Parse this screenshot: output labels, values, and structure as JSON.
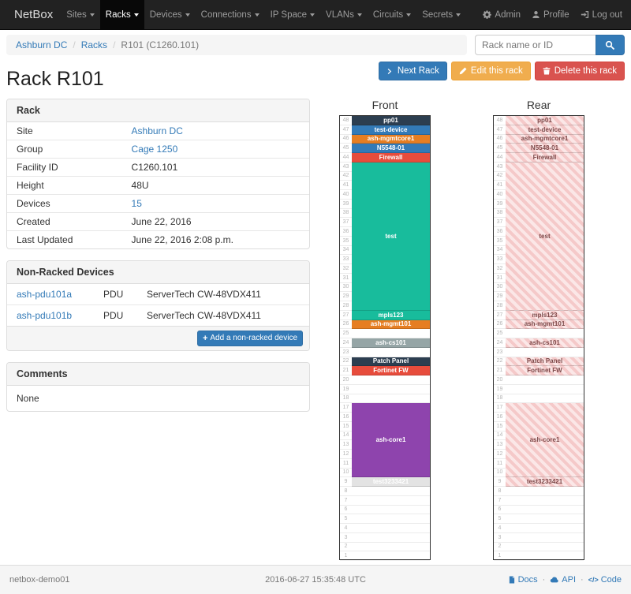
{
  "navbar": {
    "brand": "NetBox",
    "items": [
      {
        "label": "Sites"
      },
      {
        "label": "Racks",
        "active": true
      },
      {
        "label": "Devices"
      },
      {
        "label": "Connections"
      },
      {
        "label": "IP Space"
      },
      {
        "label": "VLANs"
      },
      {
        "label": "Circuits"
      },
      {
        "label": "Secrets"
      }
    ],
    "right_items": [
      {
        "label": "Admin",
        "icon": "gear-icon"
      },
      {
        "label": "Profile",
        "icon": "user-icon"
      },
      {
        "label": "Log out",
        "icon": "log-out-icon"
      }
    ]
  },
  "breadcrumb": {
    "items": [
      {
        "label": "Ashburn DC",
        "is_link": true
      },
      {
        "label": "Racks",
        "is_link": true
      },
      {
        "label": "R101 (C1260.101)",
        "is_link": false
      }
    ]
  },
  "search": {
    "placeholder": "Rack name or ID"
  },
  "actions": {
    "next_rack": "Next Rack",
    "next_rack_icon": "chevron-right-icon",
    "edit_rack": "Edit this rack",
    "edit_rack_icon": "pencil-icon",
    "delete_rack": "Delete this rack",
    "delete_rack_icon": "trash-icon"
  },
  "page": {
    "title": "Rack R101"
  },
  "rack_info": {
    "title": "Rack",
    "rows": [
      {
        "label": "Site",
        "value": "Ashburn DC",
        "is_link": true
      },
      {
        "label": "Group",
        "value": "Cage 1250",
        "is_link": true
      },
      {
        "label": "Facility ID",
        "value": "C1260.101",
        "is_link": false
      },
      {
        "label": "Height",
        "value": "48U",
        "is_link": false
      },
      {
        "label": "Devices",
        "value": "15",
        "is_link": true
      },
      {
        "label": "Created",
        "value": "June 22, 2016",
        "is_link": false
      },
      {
        "label": "Last Updated",
        "value": "June 22, 2016 2:08 p.m.",
        "is_link": false
      }
    ]
  },
  "non_racked": {
    "title": "Non-Racked Devices",
    "devices": [
      {
        "name": "ash-pdu101a",
        "role": "PDU",
        "device_type": "ServerTech CW-48VDX411"
      },
      {
        "name": "ash-pdu101b",
        "role": "PDU",
        "device_type": "ServerTech CW-48VDX411"
      }
    ],
    "add_button": "Add a non-racked device"
  },
  "comments": {
    "title": "Comments",
    "body": "None"
  },
  "elevation": {
    "front_title": "Front",
    "rear_title": "Rear",
    "units": 48,
    "rear_label_color": "#7d4a4a",
    "rear_stripe_colors": [
      "#f5c9c9",
      "#fbe7e7"
    ],
    "devices": [
      {
        "name": "pp01",
        "top_u": 48,
        "u_height": 1,
        "color": "#2c3e50",
        "text_color": "#ffffff"
      },
      {
        "name": "test-device",
        "top_u": 47,
        "u_height": 1,
        "color": "#337ab7",
        "text_color": "#ffffff"
      },
      {
        "name": "ash-mgmtcore1",
        "top_u": 46,
        "u_height": 1,
        "color": "#e67e22",
        "text_color": "#ffffff"
      },
      {
        "name": "N5548-01",
        "top_u": 45,
        "u_height": 1,
        "color": "#337ab7",
        "text_color": "#ffffff"
      },
      {
        "name": "Firewall",
        "top_u": 44,
        "u_height": 1,
        "color": "#e74c3c",
        "text_color": "#ffffff"
      },
      {
        "name": "test",
        "top_u": 43,
        "u_height": 16,
        "color": "#18bc9c",
        "text_color": "#ffffff"
      },
      {
        "name": "mpls123",
        "top_u": 27,
        "u_height": 1,
        "color": "#18bc9c",
        "text_color": "#ffffff"
      },
      {
        "name": "ash-mgmt101",
        "top_u": 26,
        "u_height": 1,
        "color": "#e67e22",
        "text_color": "#ffffff"
      },
      {
        "name": "ash-cs101",
        "top_u": 24,
        "u_height": 1,
        "color": "#95a5a6",
        "text_color": "#ffffff"
      },
      {
        "name": "Patch Panel",
        "top_u": 22,
        "u_height": 1,
        "color": "#2c3e50",
        "text_color": "#ffffff"
      },
      {
        "name": "Fortinet FW",
        "top_u": 21,
        "u_height": 1,
        "color": "#e74c3c",
        "text_color": "#ffffff"
      },
      {
        "name": "ash-core1",
        "top_u": 17,
        "u_height": 8,
        "color": "#8e44ad",
        "text_color": "#ffffff"
      },
      {
        "name": "test3233421",
        "top_u": 9,
        "u_height": 1,
        "color": "#e3e3e3",
        "text_color": "#ffffff"
      }
    ]
  },
  "footer": {
    "hostname": "netbox-demo01",
    "timestamp": "2016-06-27 15:35:48 UTC",
    "links": [
      {
        "label": "Docs",
        "icon": "docs-icon"
      },
      {
        "label": "API",
        "icon": "cloud-icon"
      },
      {
        "label": "Code",
        "icon": "code-icon"
      }
    ]
  }
}
